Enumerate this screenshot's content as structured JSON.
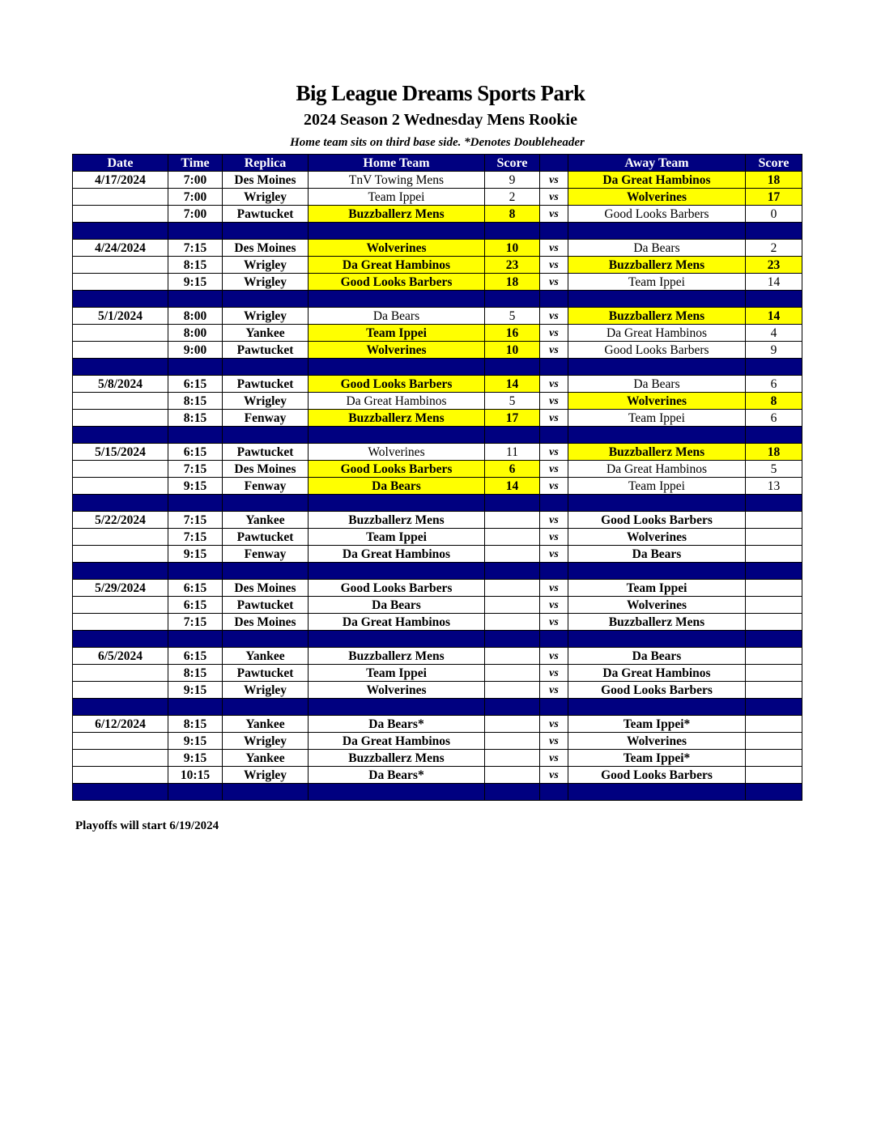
{
  "title": "Big League Dreams Sports Park",
  "subtitle": "2024 Season 2 Wednesday Mens Rookie",
  "note": "Home team sits on third base side.  *Denotes Doubleheader",
  "columns": [
    "Date",
    "Time",
    "Replica",
    "Home Team",
    "Score",
    "",
    "Away Team",
    "Score"
  ],
  "vs_label": "vs",
  "colors": {
    "header": "#000080",
    "winner_highlight": "#ffff00"
  },
  "groups": [
    {
      "date": "4/17/2024",
      "games": [
        {
          "time": "7:00",
          "field": "Des Moines",
          "home": "TnV Towing Mens",
          "home_score": "9",
          "away": "Da Great Hambinos",
          "away_score": "18",
          "winner": "away"
        },
        {
          "time": "7:00",
          "field": "Wrigley",
          "home": "Team Ippei",
          "home_score": "2",
          "away": "Wolverines",
          "away_score": "17",
          "winner": "away"
        },
        {
          "time": "7:00",
          "field": "Pawtucket",
          "home": "Buzzballerz Mens",
          "home_score": "8",
          "away": "Good Looks Barbers",
          "away_score": "0",
          "winner": "home"
        }
      ]
    },
    {
      "date": "4/24/2024",
      "games": [
        {
          "time": "7:15",
          "field": "Des Moines",
          "home": "Wolverines",
          "home_score": "10",
          "away": "Da Bears",
          "away_score": "2",
          "winner": "home"
        },
        {
          "time": "8:15",
          "field": "Wrigley",
          "home": "Da Great Hambinos",
          "home_score": "23",
          "away": "Buzzballerz Mens",
          "away_score": "23",
          "winner": "both"
        },
        {
          "time": "9:15",
          "field": "Wrigley",
          "home": "Good Looks Barbers",
          "home_score": "18",
          "away": "Team Ippei",
          "away_score": "14",
          "winner": "home"
        }
      ]
    },
    {
      "date": "5/1/2024",
      "games": [
        {
          "time": "8:00",
          "field": "Wrigley",
          "home": "Da Bears",
          "home_score": "5",
          "away": "Buzzballerz Mens",
          "away_score": "14",
          "winner": "away"
        },
        {
          "time": "8:00",
          "field": "Yankee",
          "home": "Team Ippei",
          "home_score": "16",
          "away": "Da Great Hambinos",
          "away_score": "4",
          "winner": "home"
        },
        {
          "time": "9:00",
          "field": "Pawtucket",
          "home": "Wolverines",
          "home_score": "10",
          "away": "Good Looks Barbers",
          "away_score": "9",
          "winner": "home"
        }
      ]
    },
    {
      "date": "5/8/2024",
      "games": [
        {
          "time": "6:15",
          "field": "Pawtucket",
          "home": "Good Looks Barbers",
          "home_score": "14",
          "away": "Da Bears",
          "away_score": "6",
          "winner": "home"
        },
        {
          "time": "8:15",
          "field": "Wrigley",
          "home": "Da Great Hambinos",
          "home_score": "5",
          "away": "Wolverines",
          "away_score": "8",
          "winner": "away"
        },
        {
          "time": "8:15",
          "field": "Fenway",
          "home": "Buzzballerz Mens",
          "home_score": "17",
          "away": "Team Ippei",
          "away_score": "6",
          "winner": "home"
        }
      ]
    },
    {
      "date": "5/15/2024",
      "games": [
        {
          "time": "6:15",
          "field": "Pawtucket",
          "home": "Wolverines",
          "home_score": "11",
          "away": "Buzzballerz Mens",
          "away_score": "18",
          "winner": "away"
        },
        {
          "time": "7:15",
          "field": "Des Moines",
          "home": "Good Looks Barbers",
          "home_score": "6",
          "away": "Da Great Hambinos",
          "away_score": "5",
          "winner": "home"
        },
        {
          "time": "9:15",
          "field": "Fenway",
          "home": "Da Bears",
          "home_score": "14",
          "away": "Team Ippei",
          "away_score": "13",
          "winner": "home"
        }
      ]
    },
    {
      "date": "5/22/2024",
      "games": [
        {
          "time": "7:15",
          "field": "Yankee",
          "home": "Buzzballerz Mens",
          "home_score": "",
          "away": "Good Looks Barbers",
          "away_score": "",
          "winner": null
        },
        {
          "time": "7:15",
          "field": "Pawtucket",
          "home": "Team Ippei",
          "home_score": "",
          "away": "Wolverines",
          "away_score": "",
          "winner": null
        },
        {
          "time": "9:15",
          "field": "Fenway",
          "home": "Da Great Hambinos",
          "home_score": "",
          "away": "Da Bears",
          "away_score": "",
          "winner": null
        }
      ]
    },
    {
      "date": "5/29/2024",
      "games": [
        {
          "time": "6:15",
          "field": "Des Moines",
          "home": "Good Looks Barbers",
          "home_score": "",
          "away": "Team Ippei",
          "away_score": "",
          "winner": null
        },
        {
          "time": "6:15",
          "field": "Pawtucket",
          "home": "Da Bears",
          "home_score": "",
          "away": "Wolverines",
          "away_score": "",
          "winner": null
        },
        {
          "time": "7:15",
          "field": "Des Moines",
          "home": "Da Great Hambinos",
          "home_score": "",
          "away": "Buzzballerz Mens",
          "away_score": "",
          "winner": null
        }
      ]
    },
    {
      "date": "6/5/2024",
      "games": [
        {
          "time": "6:15",
          "field": "Yankee",
          "home": "Buzzballerz Mens",
          "home_score": "",
          "away": "Da Bears",
          "away_score": "",
          "winner": null
        },
        {
          "time": "8:15",
          "field": "Pawtucket",
          "home": "Team Ippei",
          "home_score": "",
          "away": "Da Great Hambinos",
          "away_score": "",
          "winner": null
        },
        {
          "time": "9:15",
          "field": "Wrigley",
          "home": "Wolverines",
          "home_score": "",
          "away": "Good Looks Barbers",
          "away_score": "",
          "winner": null
        }
      ]
    },
    {
      "date": "6/12/2024",
      "games": [
        {
          "time": "8:15",
          "field": "Yankee",
          "home": "Da Bears*",
          "home_score": "",
          "away": "Team Ippei*",
          "away_score": "",
          "winner": null
        },
        {
          "time": "9:15",
          "field": "Wrigley",
          "home": "Da Great Hambinos",
          "home_score": "",
          "away": "Wolverines",
          "away_score": "",
          "winner": null
        },
        {
          "time": "9:15",
          "field": "Yankee",
          "home": "Buzzballerz Mens",
          "home_score": "",
          "away": "Team Ippei*",
          "away_score": "",
          "winner": null
        },
        {
          "time": "10:15",
          "field": "Wrigley",
          "home": "Da Bears*",
          "home_score": "",
          "away": "Good Looks Barbers",
          "away_score": "",
          "winner": null
        }
      ]
    }
  ],
  "footer": "Playoffs will start 6/19/2024"
}
